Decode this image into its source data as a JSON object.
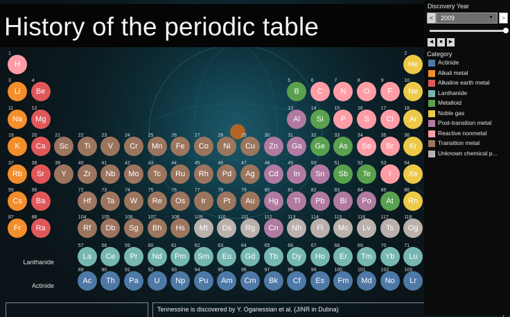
{
  "title": "History of the periodic table",
  "filter": {
    "label": "Discovery Year",
    "year": "2009",
    "prev": "<",
    "next": ">",
    "year_position_fraction": 1.0
  },
  "legend": {
    "title": "Category",
    "items": [
      {
        "key": "act",
        "label": "Actinide",
        "color": "#4e79a7"
      },
      {
        "key": "alk",
        "label": "Alkali metal",
        "color": "#f28e2b"
      },
      {
        "key": "ae",
        "label": "Alkaline earth metal",
        "color": "#e15759"
      },
      {
        "key": "lan",
        "label": "Lanthanide",
        "color": "#76b7b2"
      },
      {
        "key": "met",
        "label": "Metalloid",
        "color": "#59a14f"
      },
      {
        "key": "nob",
        "label": "Noble gas",
        "color": "#edc948"
      },
      {
        "key": "pt",
        "label": "Post-transition metal",
        "color": "#b07aa1"
      },
      {
        "key": "rn",
        "label": "Reactive nonmetal",
        "color": "#ff9da7"
      },
      {
        "key": "tm",
        "label": "Transition metal",
        "color": "#9c755f"
      },
      {
        "key": "unk",
        "label": "Unknown chemical p...",
        "color": "#bab0ac"
      }
    ]
  },
  "row_labels": {
    "lanthanide": "Lanthanide",
    "actinide": "Actinide"
  },
  "story": "Tennessine is discovered by Y. Oganessian et al. (JINR in Dubna)",
  "elements": [
    {
      "n": "1",
      "s": "H",
      "r": 1,
      "c": 1,
      "cat": "rn"
    },
    {
      "n": "2",
      "s": "He",
      "r": 1,
      "c": 18,
      "cat": "nob"
    },
    {
      "n": "3",
      "s": "Li",
      "r": 2,
      "c": 1,
      "cat": "alk"
    },
    {
      "n": "4",
      "s": "Be",
      "r": 2,
      "c": 2,
      "cat": "ae"
    },
    {
      "n": "5",
      "s": "B",
      "r": 2,
      "c": 13,
      "cat": "met"
    },
    {
      "n": "6",
      "s": "C",
      "r": 2,
      "c": 14,
      "cat": "rn"
    },
    {
      "n": "7",
      "s": "N",
      "r": 2,
      "c": 15,
      "cat": "rn"
    },
    {
      "n": "8",
      "s": "O",
      "r": 2,
      "c": 16,
      "cat": "rn"
    },
    {
      "n": "9",
      "s": "F",
      "r": 2,
      "c": 17,
      "cat": "rn"
    },
    {
      "n": "10",
      "s": "Ne",
      "r": 2,
      "c": 18,
      "cat": "nob"
    },
    {
      "n": "11",
      "s": "Na",
      "r": 3,
      "c": 1,
      "cat": "alk"
    },
    {
      "n": "12",
      "s": "Mg",
      "r": 3,
      "c": 2,
      "cat": "ae"
    },
    {
      "n": "13",
      "s": "Al",
      "r": 3,
      "c": 13,
      "cat": "pt"
    },
    {
      "n": "14",
      "s": "Si",
      "r": 3,
      "c": 14,
      "cat": "met"
    },
    {
      "n": "15",
      "s": "P",
      "r": 3,
      "c": 15,
      "cat": "rn"
    },
    {
      "n": "16",
      "s": "S",
      "r": 3,
      "c": 16,
      "cat": "rn"
    },
    {
      "n": "17",
      "s": "Cl",
      "r": 3,
      "c": 17,
      "cat": "rn"
    },
    {
      "n": "18",
      "s": "Ar",
      "r": 3,
      "c": 18,
      "cat": "nob"
    },
    {
      "n": "19",
      "s": "K",
      "r": 4,
      "c": 1,
      "cat": "alk"
    },
    {
      "n": "20",
      "s": "Ca",
      "r": 4,
      "c": 2,
      "cat": "ae"
    },
    {
      "n": "21",
      "s": "Sc",
      "r": 4,
      "c": 3,
      "cat": "tm"
    },
    {
      "n": "22",
      "s": "Ti",
      "r": 4,
      "c": 4,
      "cat": "tm"
    },
    {
      "n": "23",
      "s": "V",
      "r": 4,
      "c": 5,
      "cat": "tm"
    },
    {
      "n": "24",
      "s": "Cr",
      "r": 4,
      "c": 6,
      "cat": "tm"
    },
    {
      "n": "25",
      "s": "Mn",
      "r": 4,
      "c": 7,
      "cat": "tm"
    },
    {
      "n": "26",
      "s": "Fe",
      "r": 4,
      "c": 8,
      "cat": "tm"
    },
    {
      "n": "27",
      "s": "Co",
      "r": 4,
      "c": 9,
      "cat": "tm"
    },
    {
      "n": "28",
      "s": "Ni",
      "r": 4,
      "c": 10,
      "cat": "tm"
    },
    {
      "n": "29",
      "s": "Cu",
      "r": 4,
      "c": 11,
      "cat": "tm"
    },
    {
      "n": "30",
      "s": "Zn",
      "r": 4,
      "c": 12,
      "cat": "pt"
    },
    {
      "n": "31",
      "s": "Ga",
      "r": 4,
      "c": 13,
      "cat": "pt"
    },
    {
      "n": "32",
      "s": "Ge",
      "r": 4,
      "c": 14,
      "cat": "met"
    },
    {
      "n": "33",
      "s": "As",
      "r": 4,
      "c": 15,
      "cat": "met"
    },
    {
      "n": "34",
      "s": "Se",
      "r": 4,
      "c": 16,
      "cat": "rn"
    },
    {
      "n": "35",
      "s": "Br",
      "r": 4,
      "c": 17,
      "cat": "rn"
    },
    {
      "n": "36",
      "s": "Kr",
      "r": 4,
      "c": 18,
      "cat": "nob"
    },
    {
      "n": "37",
      "s": "Rb",
      "r": 5,
      "c": 1,
      "cat": "alk"
    },
    {
      "n": "38",
      "s": "Sr",
      "r": 5,
      "c": 2,
      "cat": "ae"
    },
    {
      "n": "39",
      "s": "Y",
      "r": 5,
      "c": 3,
      "cat": "tm"
    },
    {
      "n": "40",
      "s": "Zr",
      "r": 5,
      "c": 4,
      "cat": "tm"
    },
    {
      "n": "41",
      "s": "Nb",
      "r": 5,
      "c": 5,
      "cat": "tm"
    },
    {
      "n": "42",
      "s": "Mo",
      "r": 5,
      "c": 6,
      "cat": "tm"
    },
    {
      "n": "43",
      "s": "Tc",
      "r": 5,
      "c": 7,
      "cat": "tm"
    },
    {
      "n": "44",
      "s": "Ru",
      "r": 5,
      "c": 8,
      "cat": "tm"
    },
    {
      "n": "45",
      "s": "Rh",
      "r": 5,
      "c": 9,
      "cat": "tm"
    },
    {
      "n": "46",
      "s": "Pd",
      "r": 5,
      "c": 10,
      "cat": "tm"
    },
    {
      "n": "47",
      "s": "Ag",
      "r": 5,
      "c": 11,
      "cat": "tm"
    },
    {
      "n": "48",
      "s": "Cd",
      "r": 5,
      "c": 12,
      "cat": "pt"
    },
    {
      "n": "49",
      "s": "In",
      "r": 5,
      "c": 13,
      "cat": "pt"
    },
    {
      "n": "50",
      "s": "Sn",
      "r": 5,
      "c": 14,
      "cat": "pt"
    },
    {
      "n": "51",
      "s": "Sb",
      "r": 5,
      "c": 15,
      "cat": "met"
    },
    {
      "n": "52",
      "s": "Te",
      "r": 5,
      "c": 16,
      "cat": "met"
    },
    {
      "n": "53",
      "s": "I",
      "r": 5,
      "c": 17,
      "cat": "rn"
    },
    {
      "n": "54",
      "s": "Xe",
      "r": 5,
      "c": 18,
      "cat": "nob"
    },
    {
      "n": "55",
      "s": "Cs",
      "r": 6,
      "c": 1,
      "cat": "alk"
    },
    {
      "n": "56",
      "s": "Ba",
      "r": 6,
      "c": 2,
      "cat": "ae"
    },
    {
      "n": "72",
      "s": "Hf",
      "r": 6,
      "c": 4,
      "cat": "tm"
    },
    {
      "n": "73",
      "s": "Ta",
      "r": 6,
      "c": 5,
      "cat": "tm"
    },
    {
      "n": "74",
      "s": "W",
      "r": 6,
      "c": 6,
      "cat": "tm"
    },
    {
      "n": "75",
      "s": "Re",
      "r": 6,
      "c": 7,
      "cat": "tm"
    },
    {
      "n": "76",
      "s": "Os",
      "r": 6,
      "c": 8,
      "cat": "tm"
    },
    {
      "n": "77",
      "s": "Ir",
      "r": 6,
      "c": 9,
      "cat": "tm"
    },
    {
      "n": "78",
      "s": "Pt",
      "r": 6,
      "c": 10,
      "cat": "tm"
    },
    {
      "n": "79",
      "s": "Au",
      "r": 6,
      "c": 11,
      "cat": "tm"
    },
    {
      "n": "80",
      "s": "Hg",
      "r": 6,
      "c": 12,
      "cat": "pt"
    },
    {
      "n": "81",
      "s": "Tl",
      "r": 6,
      "c": 13,
      "cat": "pt"
    },
    {
      "n": "82",
      "s": "Pb",
      "r": 6,
      "c": 14,
      "cat": "pt"
    },
    {
      "n": "83",
      "s": "Bi",
      "r": 6,
      "c": 15,
      "cat": "pt"
    },
    {
      "n": "84",
      "s": "Po",
      "r": 6,
      "c": 16,
      "cat": "pt"
    },
    {
      "n": "85",
      "s": "At",
      "r": 6,
      "c": 17,
      "cat": "met"
    },
    {
      "n": "86",
      "s": "Rn",
      "r": 6,
      "c": 18,
      "cat": "nob"
    },
    {
      "n": "87",
      "s": "Fr",
      "r": 7,
      "c": 1,
      "cat": "alk"
    },
    {
      "n": "88",
      "s": "Ra",
      "r": 7,
      "c": 2,
      "cat": "ae"
    },
    {
      "n": "104",
      "s": "Rf",
      "r": 7,
      "c": 4,
      "cat": "tm"
    },
    {
      "n": "105",
      "s": "Db",
      "r": 7,
      "c": 5,
      "cat": "tm"
    },
    {
      "n": "106",
      "s": "Sg",
      "r": 7,
      "c": 6,
      "cat": "tm"
    },
    {
      "n": "107",
      "s": "Bh",
      "r": 7,
      "c": 7,
      "cat": "tm"
    },
    {
      "n": "108",
      "s": "Hs",
      "r": 7,
      "c": 8,
      "cat": "tm"
    },
    {
      "n": "109",
      "s": "Mt",
      "r": 7,
      "c": 9,
      "cat": "unk"
    },
    {
      "n": "110",
      "s": "Ds",
      "r": 7,
      "c": 10,
      "cat": "unk"
    },
    {
      "n": "111",
      "s": "Rg",
      "r": 7,
      "c": 11,
      "cat": "unk"
    },
    {
      "n": "112",
      "s": "Cn",
      "r": 7,
      "c": 12,
      "cat": "pt"
    },
    {
      "n": "113",
      "s": "Nh",
      "r": 7,
      "c": 13,
      "cat": "unk"
    },
    {
      "n": "114",
      "s": "Fl",
      "r": 7,
      "c": 14,
      "cat": "unk"
    },
    {
      "n": "115",
      "s": "Mc",
      "r": 7,
      "c": 15,
      "cat": "unk"
    },
    {
      "n": "116",
      "s": "Lv",
      "r": 7,
      "c": 16,
      "cat": "unk"
    },
    {
      "n": "117",
      "s": "Ts",
      "r": 7,
      "c": 17,
      "cat": "unk"
    },
    {
      "n": "118",
      "s": "Og",
      "r": 7,
      "c": 18,
      "cat": "unk"
    },
    {
      "n": "57",
      "s": "La",
      "r": 8,
      "c": 4,
      "cat": "lan"
    },
    {
      "n": "58",
      "s": "Ce",
      "r": 8,
      "c": 5,
      "cat": "lan"
    },
    {
      "n": "59",
      "s": "Pr",
      "r": 8,
      "c": 6,
      "cat": "lan"
    },
    {
      "n": "60",
      "s": "Nd",
      "r": 8,
      "c": 7,
      "cat": "lan"
    },
    {
      "n": "61",
      "s": "Pm",
      "r": 8,
      "c": 8,
      "cat": "lan"
    },
    {
      "n": "62",
      "s": "Sm",
      "r": 8,
      "c": 9,
      "cat": "lan"
    },
    {
      "n": "63",
      "s": "Eu",
      "r": 8,
      "c": 10,
      "cat": "lan"
    },
    {
      "n": "64",
      "s": "Gd",
      "r": 8,
      "c": 11,
      "cat": "lan"
    },
    {
      "n": "65",
      "s": "Tb",
      "r": 8,
      "c": 12,
      "cat": "lan"
    },
    {
      "n": "66",
      "s": "Dy",
      "r": 8,
      "c": 13,
      "cat": "lan"
    },
    {
      "n": "67",
      "s": "Ho",
      "r": 8,
      "c": 14,
      "cat": "lan"
    },
    {
      "n": "68",
      "s": "Er",
      "r": 8,
      "c": 15,
      "cat": "lan"
    },
    {
      "n": "69",
      "s": "Tm",
      "r": 8,
      "c": 16,
      "cat": "lan"
    },
    {
      "n": "70",
      "s": "Yb",
      "r": 8,
      "c": 17,
      "cat": "lan"
    },
    {
      "n": "71",
      "s": "Lu",
      "r": 8,
      "c": 18,
      "cat": "lan"
    },
    {
      "n": "89",
      "s": "Ac",
      "r": 9,
      "c": 4,
      "cat": "act"
    },
    {
      "n": "90",
      "s": "Th",
      "r": 9,
      "c": 5,
      "cat": "act"
    },
    {
      "n": "91",
      "s": "Pa",
      "r": 9,
      "c": 6,
      "cat": "act"
    },
    {
      "n": "92",
      "s": "U",
      "r": 9,
      "c": 7,
      "cat": "act"
    },
    {
      "n": "93",
      "s": "Np",
      "r": 9,
      "c": 8,
      "cat": "act"
    },
    {
      "n": "94",
      "s": "Pu",
      "r": 9,
      "c": 9,
      "cat": "act"
    },
    {
      "n": "95",
      "s": "Am",
      "r": 9,
      "c": 10,
      "cat": "act"
    },
    {
      "n": "96",
      "s": "Cm",
      "r": 9,
      "c": 11,
      "cat": "act"
    },
    {
      "n": "97",
      "s": "Bk",
      "r": 9,
      "c": 12,
      "cat": "act"
    },
    {
      "n": "98",
      "s": "Cf",
      "r": 9,
      "c": 13,
      "cat": "act"
    },
    {
      "n": "99",
      "s": "Es",
      "r": 9,
      "c": 14,
      "cat": "act"
    },
    {
      "n": "100",
      "s": "Fm",
      "r": 9,
      "c": 15,
      "cat": "act"
    },
    {
      "n": "101",
      "s": "Md",
      "r": 9,
      "c": 16,
      "cat": "act"
    },
    {
      "n": "102",
      "s": "No",
      "r": 9,
      "c": 17,
      "cat": "act"
    },
    {
      "n": "103",
      "s": "Lr",
      "r": 9,
      "c": 18,
      "cat": "act"
    }
  ]
}
